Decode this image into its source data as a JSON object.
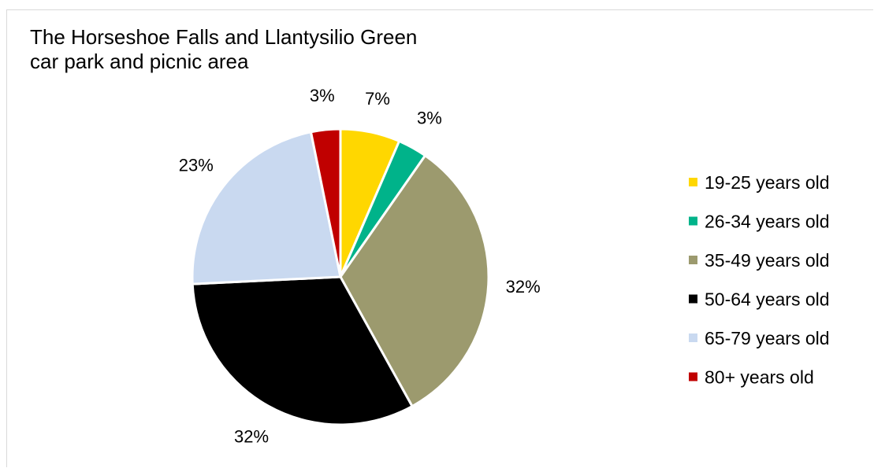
{
  "chart_data": {
    "type": "pie",
    "title": "The Horseshoe Falls and Llantysilio Green\ncar park and picnic area",
    "categories": [
      "19-25 years old",
      "26-34 years old",
      "35-49 years old",
      "50-64 years old",
      "65-79 years old",
      "80+ years old"
    ],
    "values": [
      6.5,
      3.2,
      32.3,
      32.3,
      22.6,
      3.2
    ],
    "data_labels": [
      "7%",
      "3%",
      "32%",
      "32%",
      "23%",
      "3%"
    ],
    "colors": [
      "#ffd700",
      "#00b38a",
      "#9c9a6e",
      "#000000",
      "#c9d9f0",
      "#c00000"
    ],
    "legend_position": "right"
  }
}
